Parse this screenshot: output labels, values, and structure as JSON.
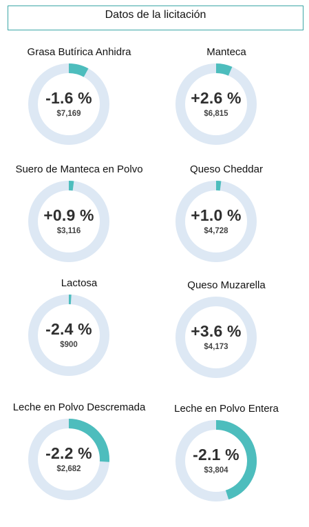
{
  "header": {
    "title": "Datos de la licitación"
  },
  "chart_data": [
    {
      "type": "pie",
      "title": "Grasa Butírica Anhidra",
      "change_label": "-1.6 %",
      "value_label": "$7,169",
      "fill_fraction": 0.08,
      "colors": {
        "fill": "#4dbdbd",
        "track": "#dde8f4"
      }
    },
    {
      "type": "pie",
      "title": "Manteca",
      "change_label": "+2.6 %",
      "value_label": "$6,815",
      "fill_fraction": 0.065,
      "colors": {
        "fill": "#4dbdbd",
        "track": "#dde8f4"
      }
    },
    {
      "type": "pie",
      "title": "Suero de Manteca en Polvo",
      "change_label": "+0.9 %",
      "value_label": "$3,116",
      "fill_fraction": 0.02,
      "colors": {
        "fill": "#4dbdbd",
        "track": "#dde8f4"
      }
    },
    {
      "type": "pie",
      "title": "Queso Cheddar",
      "change_label": "+1.0 %",
      "value_label": "$4,728",
      "fill_fraction": 0.02,
      "colors": {
        "fill": "#4dbdbd",
        "track": "#dde8f4"
      }
    },
    {
      "type": "pie",
      "title": "Lactosa",
      "change_label": "-2.4 %",
      "value_label": "$900",
      "fill_fraction": 0.01,
      "colors": {
        "fill": "#4dbdbd",
        "track": "#dde8f4"
      }
    },
    {
      "type": "pie",
      "title": "Queso Muzarella",
      "change_label": "+3.6 %",
      "value_label": "$4,173",
      "fill_fraction": 0.0,
      "colors": {
        "fill": "#4dbdbd",
        "track": "#dde8f4"
      }
    },
    {
      "type": "pie",
      "title": "Leche en Polvo Descremada",
      "change_label": "-2.2 %",
      "value_label": "$2,682",
      "fill_fraction": 0.26,
      "colors": {
        "fill": "#4dbdbd",
        "track": "#dde8f4"
      }
    },
    {
      "type": "pie",
      "title": "Leche en Polvo Entera",
      "change_label": "-2.1 %",
      "value_label": "$3,804",
      "fill_fraction": 0.45,
      "colors": {
        "fill": "#4dbdbd",
        "track": "#dde8f4"
      }
    }
  ]
}
